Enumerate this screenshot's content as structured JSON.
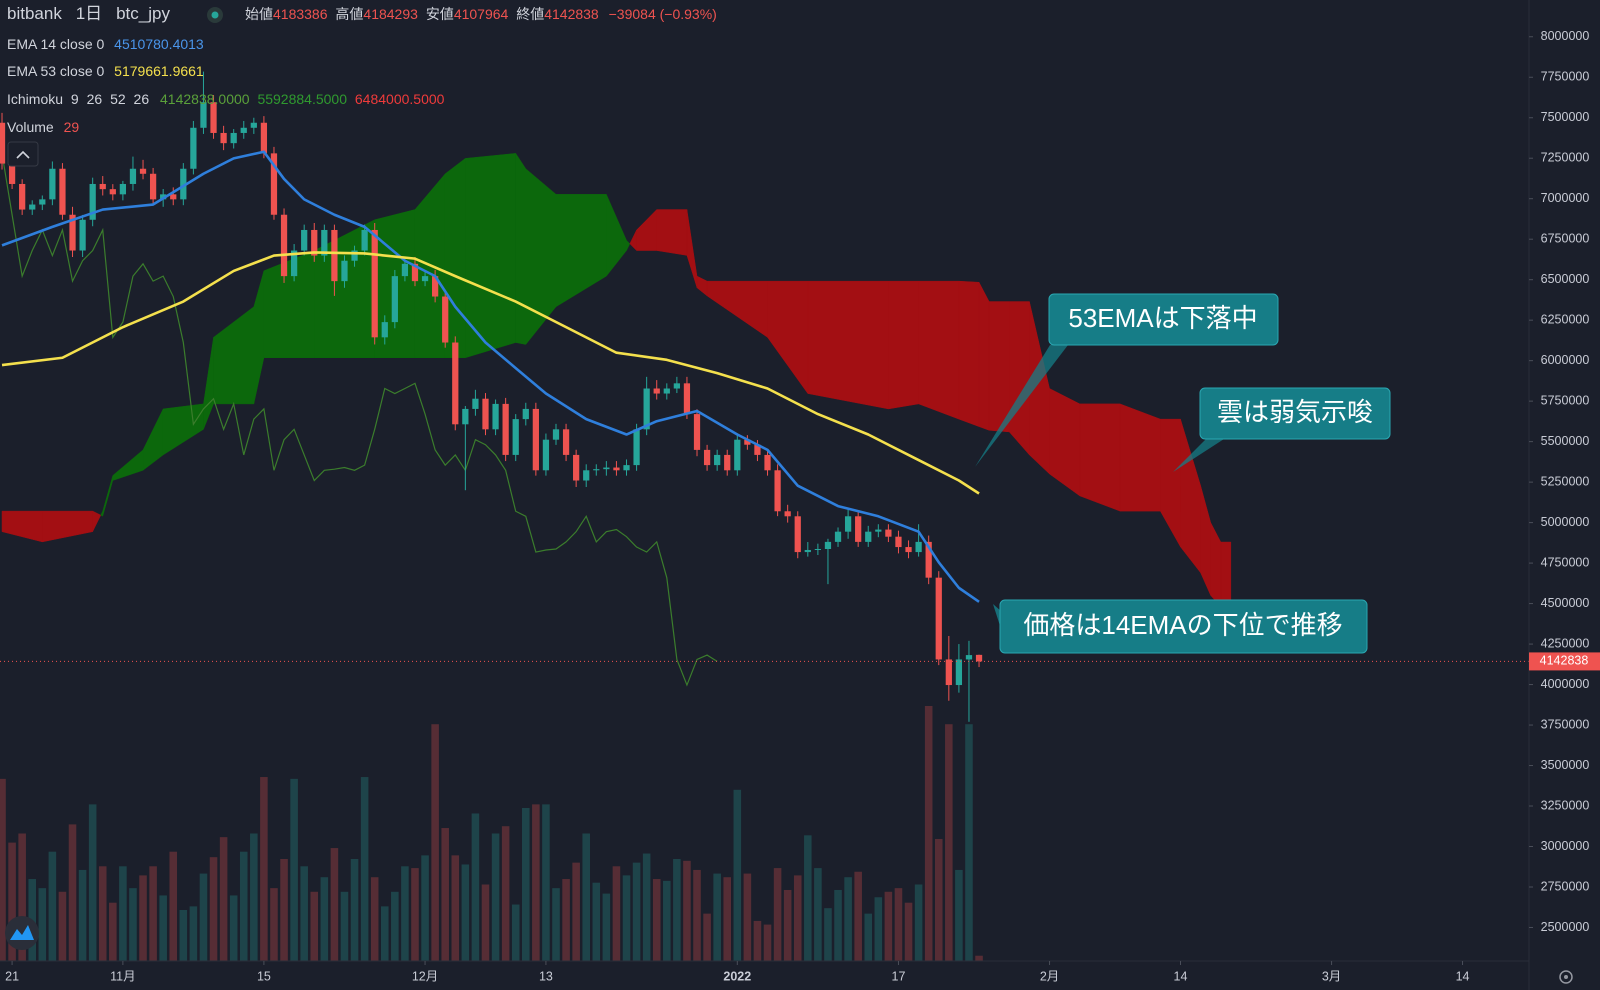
{
  "chart_data": {
    "type": "candlestick",
    "symbol": {
      "exchange": "bitbank",
      "interval": "1日",
      "pair": "btc_jpy"
    },
    "ohlc_labels": [
      "始値",
      "高値",
      "安値",
      "終値"
    ],
    "change_label": "−39084 (−0.93%)",
    "up_color": "#26a69a",
    "down_color": "#ef5350",
    "x": [
      -1,
      0,
      1,
      2,
      3,
      4,
      5,
      6,
      7,
      8,
      9,
      10,
      11,
      12,
      13,
      14,
      15,
      16,
      17,
      18,
      19,
      20,
      21,
      22,
      23,
      24,
      25,
      26,
      27,
      28,
      29,
      30,
      31,
      32,
      33,
      34,
      35,
      36,
      37,
      38,
      39,
      40,
      41,
      42,
      43,
      44,
      45,
      46,
      47,
      48,
      49,
      50,
      51,
      52,
      53,
      54,
      55,
      56,
      57,
      58,
      59,
      60,
      61,
      62,
      63,
      64,
      65,
      66,
      67,
      68,
      69,
      70,
      71,
      72,
      73,
      74,
      75,
      76,
      77,
      78,
      79,
      80,
      81,
      82,
      83,
      84,
      85,
      86,
      87,
      88,
      89,
      90,
      91,
      92,
      93,
      94,
      95,
      96
    ],
    "open": [
      7469000,
      7217000,
      7091000,
      6933000,
      6964000,
      6996000,
      7185000,
      6901000,
      6680000,
      6870000,
      7091000,
      7059000,
      7027000,
      7091000,
      7185000,
      7154000,
      6996000,
      7027000,
      6996000,
      7185000,
      7438000,
      7596000,
      7406000,
      7343000,
      7406000,
      7438000,
      7469000,
      7280000,
      6901000,
      6522000,
      6680000,
      6807000,
      6649000,
      6807000,
      6491000,
      6617000,
      6680000,
      6807000,
      6144000,
      6238000,
      6522000,
      6598000,
      6491000,
      6522000,
      6396000,
      6112000,
      5607000,
      5702000,
      5765000,
      5576000,
      5733000,
      5418000,
      5639000,
      5702000,
      5323000,
      5512000,
      5576000,
      5418000,
      5260000,
      5323000,
      5330000,
      5340000,
      5323000,
      5355000,
      5576000,
      5828000,
      5797000,
      5828000,
      5860000,
      5670000,
      5449000,
      5355000,
      5418000,
      5323000,
      5512000,
      5481000,
      5418000,
      5323000,
      5070000,
      5039000,
      4818000,
      4831000,
      4837000,
      4881000,
      4944000,
      5039000,
      4881000,
      4944000,
      4957000,
      4913000,
      4849000,
      4818000,
      4881000,
      4660000,
      4155000,
      3997000,
      4155000,
      4183386
    ],
    "high": [
      7530000,
      7250000,
      7120000,
      6990000,
      7020000,
      7230000,
      7220000,
      6950000,
      6900000,
      7130000,
      7140000,
      7090000,
      7110000,
      7260000,
      7240000,
      7190000,
      7060000,
      7070000,
      7220000,
      7480000,
      7785000,
      7640000,
      7450000,
      7430000,
      7480000,
      7500000,
      7510000,
      7320000,
      6940000,
      6720000,
      6840000,
      6850000,
      6840000,
      6840000,
      6650000,
      6710000,
      6840000,
      6850000,
      6280000,
      6560000,
      6640000,
      6640000,
      6560000,
      6560000,
      6430000,
      6150000,
      5720000,
      5820000,
      5800000,
      5760000,
      5770000,
      5670000,
      5740000,
      5740000,
      5550000,
      5610000,
      5610000,
      5450000,
      5360000,
      5360000,
      5380000,
      5380000,
      5390000,
      5610000,
      5900000,
      5880000,
      5860000,
      5900000,
      5900000,
      5700000,
      5480000,
      5450000,
      5450000,
      5550000,
      5540000,
      5510000,
      5450000,
      5360000,
      5110000,
      5070000,
      4880000,
      4870000,
      4900000,
      4970000,
      5080000,
      5070000,
      4980000,
      4990000,
      4990000,
      4950000,
      4890000,
      4990000,
      4920000,
      4700000,
      4300000,
      4250000,
      4270000,
      4184293
    ],
    "low": [
      7180000,
      7060000,
      6900000,
      6900000,
      6930000,
      6960000,
      6870000,
      6640000,
      6640000,
      6830000,
      7020000,
      6990000,
      6990000,
      7050000,
      7120000,
      6960000,
      6950000,
      6960000,
      6960000,
      7150000,
      7400000,
      7370000,
      7300000,
      7310000,
      7370000,
      7400000,
      7250000,
      6870000,
      6480000,
      6490000,
      6650000,
      6610000,
      6610000,
      6400000,
      6450000,
      6580000,
      6650000,
      6100000,
      6100000,
      6200000,
      6490000,
      6460000,
      6460000,
      6360000,
      6080000,
      5570000,
      5200000,
      5660000,
      5540000,
      5540000,
      5380000,
      5380000,
      5600000,
      5290000,
      5290000,
      5480000,
      5380000,
      5220000,
      5220000,
      5290000,
      5290000,
      5290000,
      5290000,
      5320000,
      5540000,
      5760000,
      5760000,
      5800000,
      5640000,
      5410000,
      5320000,
      5320000,
      5290000,
      5290000,
      5450000,
      5380000,
      5290000,
      5040000,
      5000000,
      4780000,
      4790000,
      4800000,
      4620000,
      4850000,
      4900000,
      4850000,
      4850000,
      4910000,
      4880000,
      4810000,
      4780000,
      4790000,
      4620000,
      4120000,
      3900000,
      3950000,
      3770000,
      4107964
    ],
    "close": [
      7217000,
      7091000,
      6933000,
      6964000,
      6996000,
      7185000,
      6901000,
      6680000,
      6870000,
      7091000,
      7059000,
      7027000,
      7091000,
      7185000,
      7154000,
      6996000,
      7027000,
      6996000,
      7185000,
      7438000,
      7596000,
      7406000,
      7343000,
      7406000,
      7438000,
      7469000,
      7280000,
      6901000,
      6522000,
      6680000,
      6807000,
      6649000,
      6807000,
      6491000,
      6617000,
      6680000,
      6807000,
      6144000,
      6238000,
      6522000,
      6598000,
      6491000,
      6522000,
      6396000,
      6112000,
      5607000,
      5702000,
      5765000,
      5576000,
      5733000,
      5418000,
      5639000,
      5702000,
      5323000,
      5512000,
      5576000,
      5418000,
      5260000,
      5323000,
      5330000,
      5340000,
      5323000,
      5355000,
      5576000,
      5828000,
      5797000,
      5828000,
      5860000,
      5670000,
      5449000,
      5355000,
      5418000,
      5323000,
      5512000,
      5481000,
      5418000,
      5323000,
      5070000,
      5039000,
      4818000,
      4831000,
      4837000,
      4881000,
      4944000,
      5039000,
      4881000,
      4944000,
      4957000,
      4913000,
      4849000,
      4818000,
      4881000,
      4660000,
      4155000,
      3997000,
      4155000,
      4181922,
      4142838
    ],
    "volume": {
      "name": "Volume",
      "values": [
        1000,
        650,
        700,
        450,
        400,
        600,
        380,
        750,
        500,
        860,
        520,
        320,
        520,
        400,
        470,
        520,
        360,
        600,
        280,
        300,
        480,
        570,
        680,
        360,
        600,
        700,
        1010,
        400,
        560,
        1000,
        520,
        380,
        460,
        620,
        380,
        560,
        1010,
        460,
        300,
        380,
        520,
        510,
        580,
        1300,
        730,
        580,
        530,
        810,
        420,
        700,
        740,
        310,
        840,
        860,
        860,
        400,
        450,
        540,
        700,
        430,
        370,
        520,
        470,
        540,
        590,
        450,
        440,
        560,
        550,
        500,
        260,
        480,
        460,
        940,
        480,
        220,
        200,
        510,
        390,
        470,
        690,
        510,
        290,
        390,
        460,
        490,
        260,
        350,
        380,
        400,
        320,
        420,
        1400,
        670,
        1300,
        500,
        1300,
        29
      ]
    },
    "ema": [
      {
        "name": "EMA 14 close 0",
        "color": "#2f7fdc",
        "x": [
          -1,
          4,
          9,
          14,
          19,
          22,
          25,
          27,
          29,
          32,
          35,
          39,
          42,
          44,
          47,
          50,
          53,
          57,
          61,
          64,
          68,
          72,
          75,
          78,
          82,
          86,
          90,
          92,
          94,
          96
        ],
        "values": [
          6712000,
          6826000,
          6933000,
          6964000,
          7154000,
          7249000,
          7290000,
          7122000,
          6996000,
          6901000,
          6826000,
          6617000,
          6522000,
          6333000,
          6112000,
          5954000,
          5797000,
          5639000,
          5544000,
          5626000,
          5689000,
          5544000,
          5449000,
          5228000,
          5102000,
          5039000,
          4944000,
          4755000,
          4597000,
          4510780.4013
        ]
      },
      {
        "name": "EMA 53 close 0",
        "color": "#f4e04d",
        "x": [
          -1,
          5,
          11,
          17,
          22,
          26,
          30,
          35,
          40,
          44,
          50,
          55,
          60,
          65,
          70,
          75,
          80,
          85,
          90,
          94,
          96
        ],
        "values": [
          5973000,
          6018000,
          6207000,
          6365000,
          6554000,
          6649000,
          6668000,
          6662000,
          6630000,
          6522000,
          6365000,
          6207000,
          6049000,
          6005000,
          5923000,
          5828000,
          5670000,
          5544000,
          5386000,
          5260000,
          5179661.9661
        ]
      }
    ],
    "ichimoku": {
      "name": "Ichimoku",
      "params": [
        9,
        26,
        52,
        26
      ],
      "legend_values": [
        "4142838.0000",
        "5592884.5000",
        "6484000.5000"
      ],
      "legend_colors": [
        "#5aa03a",
        "#2f9a2f",
        "#ef3b3b"
      ],
      "bull_color": "#0c680c",
      "bear_color": "#a30f13",
      "lagging_color": "#3b7d2c",
      "x": [
        -1,
        3,
        8,
        9,
        10,
        13,
        15,
        19,
        20,
        24,
        25,
        30,
        36,
        40,
        43,
        45,
        50,
        51,
        54,
        59,
        61,
        62,
        64,
        67,
        68,
        69,
        75,
        79,
        87,
        90,
        94,
        96,
        97,
        99,
        101,
        103,
        106,
        110,
        114,
        116,
        118,
        119,
        120,
        121
      ],
      "span_a": [
        4944000,
        4881000,
        4944000,
        5071000,
        5291000,
        5449000,
        5702000,
        5733000,
        6144000,
        6333000,
        6555000,
        6680000,
        6870000,
        6933000,
        7154000,
        7249000,
        7280000,
        7185000,
        7027000,
        7027000,
        6743000,
        6680000,
        6680000,
        6650000,
        6450000,
        6400000,
        6144000,
        5797000,
        5702000,
        5733000,
        5639000,
        5592884.5,
        5570000,
        5560000,
        5418000,
        5300000,
        5165000,
        5071000,
        5071000,
        4850000,
        4690000,
        4550000,
        4480000,
        4500000
      ],
      "span_b": [
        5071000,
        5071000,
        5071000,
        5040000,
        5260000,
        5323000,
        5418000,
        5576000,
        5733000,
        5733000,
        6018000,
        6018000,
        6018000,
        6018000,
        6018000,
        6018000,
        6112000,
        6100000,
        6333000,
        6522000,
        6680000,
        6807000,
        6933000,
        6933000,
        6522000,
        6491000,
        6491000,
        6491000,
        6491000,
        6491000,
        6491000,
        6484000.5,
        6365000,
        6365000,
        6365000,
        5828000,
        5733000,
        5733000,
        5639000,
        5639000,
        5228000,
        5000000,
        4880000,
        4880000
      ]
    },
    "xlim": [
      -1.2,
      150.6
    ],
    "xticks": [
      {
        "value": 0,
        "label": "21"
      },
      {
        "value": 11,
        "label": "11月"
      },
      {
        "value": 25,
        "label": "15"
      },
      {
        "value": 41,
        "label": "12月"
      },
      {
        "value": 53,
        "label": "13"
      },
      {
        "value": 72,
        "label": "2022"
      },
      {
        "value": 88,
        "label": "17"
      },
      {
        "value": 103,
        "label": "2月"
      },
      {
        "value": 116,
        "label": "14"
      },
      {
        "value": 131,
        "label": "3月"
      },
      {
        "value": 144,
        "label": "14"
      }
    ],
    "ylim": [
      2293000,
      8227000
    ],
    "yticks": [
      2500000,
      2750000,
      3000000,
      3250000,
      3500000,
      3750000,
      4000000,
      4250000,
      4500000,
      4750000,
      5000000,
      5250000,
      5500000,
      5750000,
      6000000,
      6250000,
      6500000,
      6750000,
      7000000,
      7250000,
      7500000,
      7750000,
      8000000
    ],
    "grid": false,
    "annotations": [
      {
        "text": "53EMAは下落中"
      },
      {
        "text": "雲は弱気示唆"
      },
      {
        "text": "価格は14EMAの下位で推移"
      }
    ]
  }
}
